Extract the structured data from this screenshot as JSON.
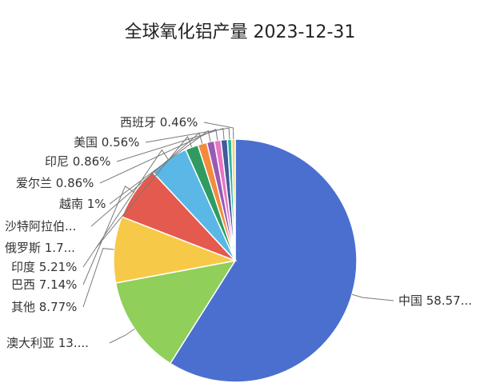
{
  "chart_data": {
    "type": "pie",
    "title": "全球氧化铝产量 2023-12-31",
    "slices": [
      {
        "name": "中国",
        "value": 58.57,
        "label": "中国 58.57...",
        "color": "#4a6fcf"
      },
      {
        "name": "澳大利亚",
        "value": 13.0,
        "label": "澳大利亚 13....",
        "color": "#8fcf5a"
      },
      {
        "name": "其他",
        "value": 8.77,
        "label": "其他 8.77%",
        "color": "#f7c948"
      },
      {
        "name": "巴西",
        "value": 7.14,
        "label": "巴西 7.14%",
        "color": "#e45a4e"
      },
      {
        "name": "印度",
        "value": 5.21,
        "label": "印度 5.21%",
        "color": "#5ab7e6"
      },
      {
        "name": "俄罗斯",
        "value": 1.7,
        "label": "俄罗斯 1.7...",
        "color": "#2f9b61"
      },
      {
        "name": "沙特阿拉伯",
        "value": 1.2,
        "label": "沙特阿拉伯...",
        "color": "#f28c3c"
      },
      {
        "name": "越南",
        "value": 1.0,
        "label": "越南 1%",
        "color": "#9b59b6"
      },
      {
        "name": "爱尔兰",
        "value": 0.86,
        "label": "爱尔兰 0.86%",
        "color": "#e975c4"
      },
      {
        "name": "印尼",
        "value": 0.86,
        "label": "印尼 0.86%",
        "color": "#3f5b9a"
      },
      {
        "name": "美国",
        "value": 0.56,
        "label": "美国 0.56%",
        "color": "#2bb5a3"
      },
      {
        "name": "西班牙",
        "value": 0.46,
        "label": "西班牙 0.46%",
        "color": "#f1d36b"
      }
    ]
  }
}
